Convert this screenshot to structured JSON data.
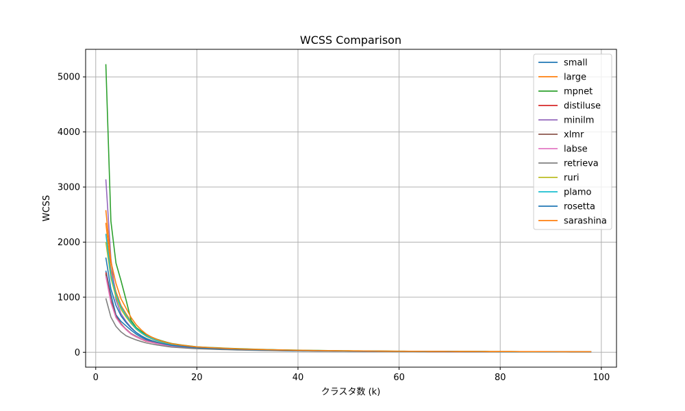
{
  "chart_data": {
    "type": "line",
    "title": "WCSS Comparison",
    "xlabel": "クラスタ数 (k)",
    "ylabel": "WCSS",
    "xlim": [
      -2,
      103
    ],
    "ylim": [
      -270,
      5500
    ],
    "xticks": [
      0,
      20,
      40,
      60,
      80,
      100
    ],
    "yticks": [
      0,
      1000,
      2000,
      3000,
      4000,
      5000
    ],
    "grid": true,
    "legend_position": "top-right",
    "x_start": 2,
    "series": [
      {
        "name": "small",
        "color": "#1f77b4",
        "knots": [
          [
            2,
            1480
          ],
          [
            3,
            1050
          ],
          [
            4,
            680
          ],
          [
            5,
            560
          ],
          [
            6,
            480
          ],
          [
            7,
            400
          ],
          [
            8,
            330
          ],
          [
            10,
            230
          ],
          [
            12,
            170
          ],
          [
            15,
            120
          ],
          [
            20,
            80
          ],
          [
            30,
            45
          ],
          [
            40,
            28
          ],
          [
            60,
            15
          ],
          [
            98,
            8
          ]
        ]
      },
      {
        "name": "large",
        "color": "#ff7f0e",
        "knots": [
          [
            2,
            2350
          ],
          [
            3,
            1500
          ],
          [
            4,
            1100
          ],
          [
            5,
            850
          ],
          [
            6,
            700
          ],
          [
            7,
            560
          ],
          [
            8,
            440
          ],
          [
            10,
            290
          ],
          [
            12,
            210
          ],
          [
            15,
            140
          ],
          [
            20,
            90
          ],
          [
            30,
            50
          ],
          [
            40,
            32
          ],
          [
            60,
            18
          ],
          [
            98,
            9
          ]
        ]
      },
      {
        "name": "mpnet",
        "color": "#2ca02c",
        "knots": [
          [
            2,
            5230
          ],
          [
            3,
            2380
          ],
          [
            4,
            1620
          ],
          [
            5,
            1300
          ],
          [
            6,
            950
          ],
          [
            7,
            580
          ],
          [
            8,
            450
          ],
          [
            10,
            320
          ],
          [
            12,
            240
          ],
          [
            15,
            160
          ],
          [
            20,
            100
          ],
          [
            30,
            60
          ],
          [
            40,
            38
          ],
          [
            60,
            20
          ],
          [
            98,
            10
          ]
        ]
      },
      {
        "name": "distiluse",
        "color": "#d62728",
        "knots": [
          [
            2,
            1450
          ],
          [
            3,
            950
          ],
          [
            4,
            650
          ],
          [
            5,
            520
          ],
          [
            6,
            410
          ],
          [
            7,
            330
          ],
          [
            8,
            280
          ],
          [
            10,
            200
          ],
          [
            12,
            160
          ],
          [
            15,
            110
          ],
          [
            20,
            75
          ],
          [
            30,
            42
          ],
          [
            40,
            27
          ],
          [
            60,
            14
          ],
          [
            98,
            7
          ]
        ]
      },
      {
        "name": "minilm",
        "color": "#9467bd",
        "knots": [
          [
            2,
            3140
          ],
          [
            3,
            1700
          ],
          [
            4,
            950
          ],
          [
            5,
            700
          ],
          [
            6,
            560
          ],
          [
            7,
            450
          ],
          [
            8,
            360
          ],
          [
            10,
            250
          ],
          [
            12,
            180
          ],
          [
            15,
            125
          ],
          [
            20,
            82
          ],
          [
            30,
            46
          ],
          [
            40,
            29
          ],
          [
            60,
            15
          ],
          [
            98,
            8
          ]
        ]
      },
      {
        "name": "xlmr",
        "color": "#8c564b",
        "knots": [
          [
            2,
            1420
          ],
          [
            3,
            920
          ],
          [
            4,
            640
          ],
          [
            5,
            510
          ],
          [
            6,
            420
          ],
          [
            7,
            340
          ],
          [
            8,
            290
          ],
          [
            10,
            210
          ],
          [
            12,
            165
          ],
          [
            15,
            115
          ],
          [
            20,
            78
          ],
          [
            30,
            44
          ],
          [
            40,
            28
          ],
          [
            60,
            14
          ],
          [
            98,
            7
          ]
        ]
      },
      {
        "name": "labse",
        "color": "#e377c2",
        "knots": [
          [
            2,
            1380
          ],
          [
            3,
            900
          ],
          [
            4,
            630
          ],
          [
            5,
            500
          ],
          [
            6,
            410
          ],
          [
            7,
            330
          ],
          [
            8,
            280
          ],
          [
            10,
            205
          ],
          [
            12,
            160
          ],
          [
            15,
            112
          ],
          [
            20,
            76
          ],
          [
            30,
            43
          ],
          [
            40,
            27
          ],
          [
            60,
            14
          ],
          [
            98,
            7
          ]
        ]
      },
      {
        "name": "retrieva",
        "color": "#7f7f7f",
        "knots": [
          [
            2,
            980
          ],
          [
            3,
            640
          ],
          [
            4,
            470
          ],
          [
            5,
            370
          ],
          [
            6,
            300
          ],
          [
            7,
            260
          ],
          [
            8,
            225
          ],
          [
            10,
            170
          ],
          [
            12,
            135
          ],
          [
            15,
            95
          ],
          [
            20,
            65
          ],
          [
            30,
            38
          ],
          [
            40,
            24
          ],
          [
            60,
            12
          ],
          [
            98,
            6
          ]
        ]
      },
      {
        "name": "ruri",
        "color": "#bcbd22",
        "knots": [
          [
            2,
            2000
          ],
          [
            3,
            1350
          ],
          [
            4,
            1000
          ],
          [
            5,
            780
          ],
          [
            6,
            640
          ],
          [
            7,
            520
          ],
          [
            8,
            420
          ],
          [
            10,
            290
          ],
          [
            12,
            210
          ],
          [
            15,
            140
          ],
          [
            20,
            92
          ],
          [
            30,
            52
          ],
          [
            40,
            33
          ],
          [
            60,
            17
          ],
          [
            98,
            9
          ]
        ]
      },
      {
        "name": "plamo",
        "color": "#17becf",
        "knots": [
          [
            2,
            2150
          ],
          [
            3,
            1400
          ],
          [
            4,
            1050
          ],
          [
            5,
            820
          ],
          [
            6,
            670
          ],
          [
            7,
            540
          ],
          [
            8,
            430
          ],
          [
            10,
            300
          ],
          [
            12,
            215
          ],
          [
            15,
            145
          ],
          [
            20,
            94
          ],
          [
            30,
            53
          ],
          [
            40,
            34
          ],
          [
            60,
            18
          ],
          [
            98,
            9
          ]
        ]
      },
      {
        "name": "rosetta",
        "color": "#1f77b4",
        "knots": [
          [
            2,
            1720
          ],
          [
            3,
            1150
          ],
          [
            4,
            850
          ],
          [
            5,
            660
          ],
          [
            6,
            540
          ],
          [
            7,
            440
          ],
          [
            8,
            360
          ],
          [
            10,
            250
          ],
          [
            12,
            185
          ],
          [
            15,
            125
          ],
          [
            20,
            84
          ],
          [
            30,
            48
          ],
          [
            40,
            30
          ],
          [
            60,
            16
          ],
          [
            98,
            8
          ]
        ]
      },
      {
        "name": "sarashina",
        "color": "#ff7f0e",
        "knots": [
          [
            2,
            2580
          ],
          [
            3,
            1650
          ],
          [
            4,
            1250
          ],
          [
            5,
            970
          ],
          [
            6,
            800
          ],
          [
            7,
            630
          ],
          [
            8,
            500
          ],
          [
            10,
            330
          ],
          [
            12,
            235
          ],
          [
            15,
            155
          ],
          [
            20,
            98
          ],
          [
            30,
            56
          ],
          [
            40,
            36
          ],
          [
            60,
            19
          ],
          [
            98,
            10
          ]
        ]
      }
    ]
  }
}
